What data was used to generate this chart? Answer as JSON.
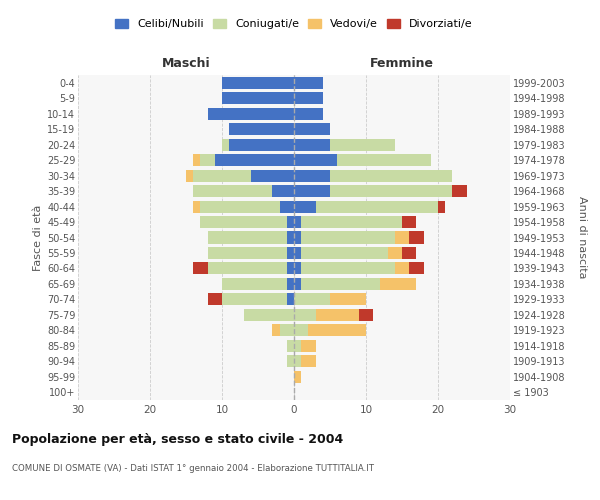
{
  "age_groups": [
    "100+",
    "95-99",
    "90-94",
    "85-89",
    "80-84",
    "75-79",
    "70-74",
    "65-69",
    "60-64",
    "55-59",
    "50-54",
    "45-49",
    "40-44",
    "35-39",
    "30-34",
    "25-29",
    "20-24",
    "15-19",
    "10-14",
    "5-9",
    "0-4"
  ],
  "birth_years": [
    "≤ 1903",
    "1904-1908",
    "1909-1913",
    "1914-1918",
    "1919-1923",
    "1924-1928",
    "1929-1933",
    "1934-1938",
    "1939-1943",
    "1944-1948",
    "1949-1953",
    "1954-1958",
    "1959-1963",
    "1964-1968",
    "1969-1973",
    "1974-1978",
    "1979-1983",
    "1984-1988",
    "1989-1993",
    "1994-1998",
    "1999-2003"
  ],
  "male": {
    "celibi": [
      0,
      0,
      0,
      0,
      0,
      0,
      1,
      1,
      1,
      1,
      1,
      1,
      2,
      3,
      6,
      11,
      9,
      9,
      12,
      10,
      10
    ],
    "coniugati": [
      0,
      0,
      1,
      1,
      2,
      7,
      9,
      9,
      11,
      11,
      11,
      12,
      11,
      11,
      8,
      2,
      1,
      0,
      0,
      0,
      0
    ],
    "vedovi": [
      0,
      0,
      0,
      0,
      1,
      0,
      0,
      0,
      0,
      0,
      0,
      0,
      1,
      0,
      1,
      1,
      0,
      0,
      0,
      0,
      0
    ],
    "divorziati": [
      0,
      0,
      0,
      0,
      0,
      0,
      2,
      0,
      2,
      0,
      0,
      0,
      0,
      0,
      0,
      0,
      0,
      0,
      0,
      0,
      0
    ]
  },
  "female": {
    "nubili": [
      0,
      0,
      0,
      0,
      0,
      0,
      0,
      1,
      1,
      1,
      1,
      1,
      3,
      5,
      5,
      6,
      5,
      5,
      4,
      4,
      4
    ],
    "coniugate": [
      0,
      0,
      1,
      1,
      2,
      3,
      5,
      11,
      13,
      12,
      13,
      14,
      17,
      17,
      17,
      13,
      9,
      0,
      0,
      0,
      0
    ],
    "vedove": [
      0,
      1,
      2,
      2,
      8,
      6,
      5,
      5,
      2,
      2,
      2,
      0,
      0,
      0,
      0,
      0,
      0,
      0,
      0,
      0,
      0
    ],
    "divorziate": [
      0,
      0,
      0,
      0,
      0,
      2,
      0,
      0,
      2,
      2,
      2,
      2,
      1,
      2,
      0,
      0,
      0,
      0,
      0,
      0,
      0
    ]
  },
  "colors": {
    "celibi": "#4472c4",
    "coniugati": "#c8dba4",
    "vedovi": "#f5c269",
    "divorziati": "#c0392b"
  },
  "title": "Popolazione per età, sesso e stato civile - 2004",
  "subtitle": "COMUNE DI OSMATE (VA) - Dati ISTAT 1° gennaio 2004 - Elaborazione TUTTITALIA.IT",
  "xlabel_left": "Maschi",
  "xlabel_right": "Femmine",
  "ylabel_left": "Fasce di età",
  "ylabel_right": "Anni di nascita",
  "xlim": 30,
  "legend_labels": [
    "Celibi/Nubili",
    "Coniugati/e",
    "Vedovi/e",
    "Divorziati/e"
  ],
  "background_color": "#ffffff",
  "plot_bg": "#f7f7f7"
}
